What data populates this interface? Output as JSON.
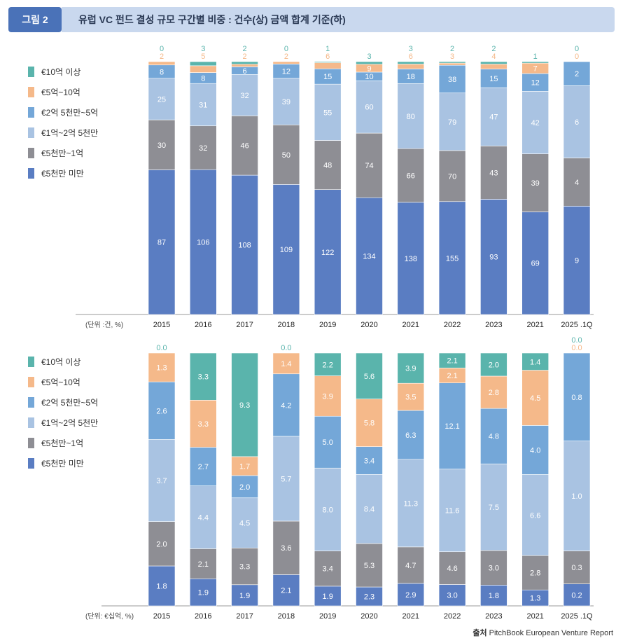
{
  "header": {
    "badge": "그림 2",
    "title": "유럽 VC 펀드 결성 규모 구간별 비중 : 건수(상) 금액 합계 기준(하)"
  },
  "colors": {
    "ge10": "#5ab4ac",
    "b5_10": "#f5b98a",
    "b25_5": "#74a7d8",
    "b1_25": "#a9c3e2",
    "b05_1": "#8e8e94",
    "lt05": "#5a7dc2"
  },
  "legend": [
    {
      "key": "ge10",
      "label": "€10억 이상"
    },
    {
      "key": "b5_10",
      "label": "€5억~10억"
    },
    {
      "key": "b25_5",
      "label": "€2억 5천만~5억"
    },
    {
      "key": "b1_25",
      "label": "€1억~2억 5천만"
    },
    {
      "key": "b05_1",
      "label": "€5천만~1억"
    },
    {
      "key": "lt05",
      "label": "€5천만 미만"
    }
  ],
  "chart_data": [
    {
      "type": "bar",
      "stacked": "percent",
      "unit_label": "(단위 :건, %)",
      "categories": [
        "2015",
        "2016",
        "2017",
        "2018",
        "2019",
        "2020",
        "2021",
        "2022",
        "2023",
        "2021",
        "2025 .1Q"
      ],
      "series": [
        {
          "key": "lt05",
          "name": "€5천만 미만",
          "values": [
            87,
            106,
            108,
            109,
            122,
            134,
            138,
            155,
            93,
            69,
            9
          ]
        },
        {
          "key": "b05_1",
          "name": "€5천만~1억",
          "values": [
            30,
            32,
            46,
            50,
            48,
            74,
            66,
            70,
            43,
            39,
            4
          ]
        },
        {
          "key": "b1_25",
          "name": "€1억~2억 5천만",
          "values": [
            25,
            31,
            32,
            39,
            55,
            60,
            80,
            79,
            47,
            42,
            6
          ]
        },
        {
          "key": "b25_5",
          "name": "€2억 5천만~5억",
          "values": [
            8,
            8,
            6,
            12,
            15,
            10,
            18,
            38,
            15,
            12,
            2
          ]
        },
        {
          "key": "b5_10",
          "name": "€5억~10억",
          "values": [
            2,
            5,
            2,
            2,
            6,
            9,
            6,
            3,
            4,
            7,
            0
          ]
        },
        {
          "key": "ge10",
          "name": "€10억 이상",
          "values": [
            0,
            3,
            2,
            0,
            1,
            3,
            3,
            2,
            2,
            1,
            0
          ]
        }
      ]
    },
    {
      "type": "bar",
      "stacked": "percent",
      "unit_label": "(단위: €십억, %)",
      "categories": [
        "2015",
        "2016",
        "2017",
        "2018",
        "2019",
        "2020",
        "2021",
        "2022",
        "2023",
        "2021",
        "2025 .1Q"
      ],
      "series": [
        {
          "key": "lt05",
          "name": "€5천만 미만",
          "values": [
            1.8,
            1.9,
            1.9,
            2.1,
            1.9,
            2.3,
            2.9,
            3.0,
            1.8,
            1.3,
            0.2
          ]
        },
        {
          "key": "b05_1",
          "name": "€5천만~1억",
          "values": [
            2.0,
            2.1,
            3.3,
            3.6,
            3.4,
            5.3,
            4.7,
            4.6,
            3.0,
            2.8,
            0.3
          ]
        },
        {
          "key": "b1_25",
          "name": "€1억~2억 5천만",
          "values": [
            3.7,
            4.4,
            4.5,
            5.7,
            8.0,
            8.4,
            11.3,
            11.6,
            7.5,
            6.6,
            1.0
          ]
        },
        {
          "key": "b25_5",
          "name": "€2억 5천만~5억",
          "values": [
            2.6,
            2.7,
            2.0,
            4.2,
            5.0,
            3.4,
            6.3,
            12.1,
            4.8,
            4.0,
            0.8
          ]
        },
        {
          "key": "b5_10",
          "name": "€5억~10억",
          "values": [
            1.3,
            3.3,
            1.7,
            1.4,
            3.9,
            5.8,
            3.5,
            2.1,
            2.8,
            4.5,
            0.0
          ]
        },
        {
          "key": "ge10",
          "name": "€10억 이상",
          "values": [
            0.0,
            3.3,
            9.3,
            0.0,
            2.2,
            5.6,
            3.9,
            2.1,
            2.0,
            1.4,
            0.0
          ]
        }
      ]
    }
  ],
  "source": {
    "label": "출처",
    "text": "PitchBook European Venture Report"
  }
}
